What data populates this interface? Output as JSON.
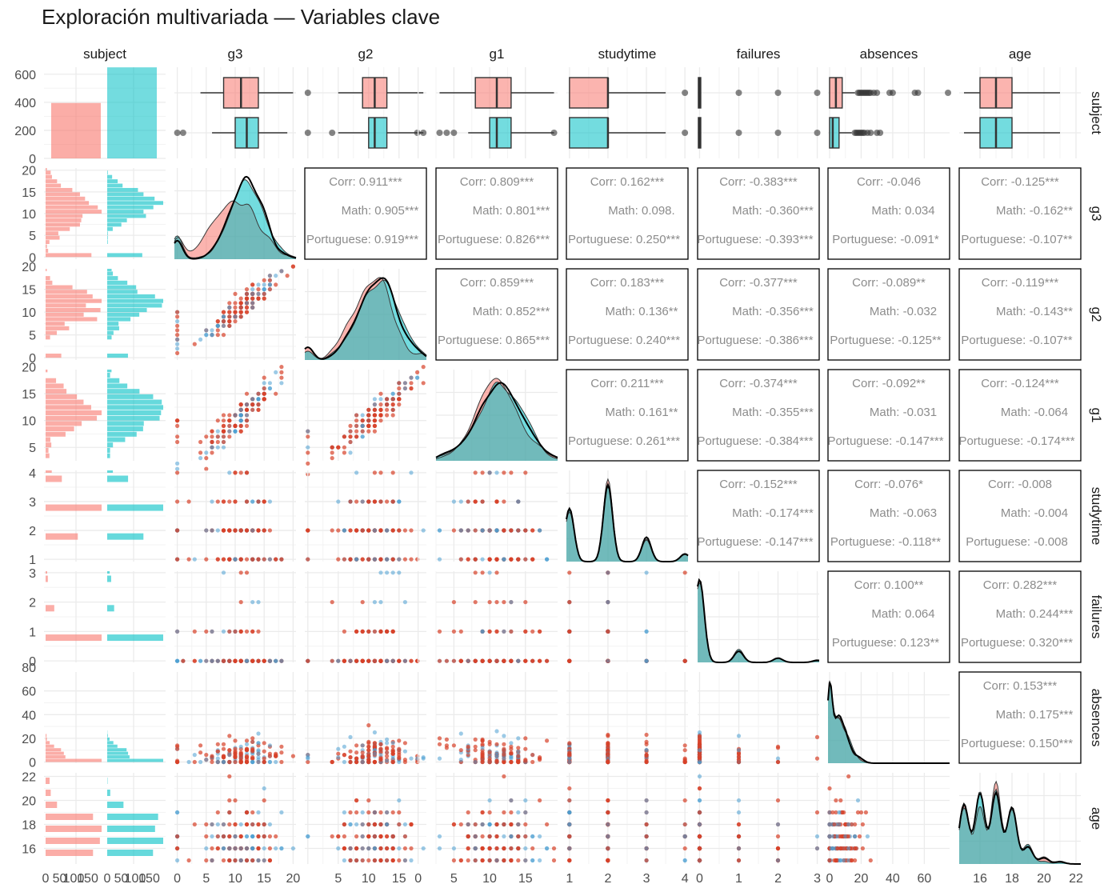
{
  "title": "Exploración multivariada — Variables clave",
  "variables": [
    "subject",
    "g3",
    "g2",
    "g1",
    "studytime",
    "failures",
    "absences",
    "age"
  ],
  "subject_levels": [
    "Math",
    "Portuguese"
  ],
  "colors": {
    "math_fill": "#F8766D",
    "portuguese_fill": "#00BFC4",
    "density_overlap": "#5FA8A8",
    "point_red": "#D7412A",
    "point_blue": "#4A9FD2",
    "grid": "#EBEBEB",
    "text": "#4D4D4D",
    "corr_text": "#8C8C8C"
  },
  "chart_data": {
    "type": "scatter",
    "title": "Exploración multivariada — Variables clave",
    "axes": {
      "subject": {
        "ticks": [
          0,
          200,
          400,
          600
        ],
        "range": [
          0,
          650
        ]
      },
      "g3": {
        "ticks": [
          0,
          5,
          10,
          15,
          20
        ],
        "range": [
          -0.5,
          20.5
        ]
      },
      "g2": {
        "ticks": [
          0,
          5,
          10,
          15
        ],
        "range": [
          -0.5,
          19.5
        ]
      },
      "g1": {
        "ticks": [
          0,
          5,
          10,
          15
        ],
        "range": [
          2.5,
          19.5
        ]
      },
      "studytime": {
        "ticks": [
          1,
          2,
          3,
          4
        ],
        "range": [
          0.92,
          4.08
        ]
      },
      "failures": {
        "ticks": [
          0,
          1,
          2,
          3
        ],
        "range": [
          -0.05,
          3.05
        ]
      },
      "absences": {
        "ticks": [
          0,
          20,
          40,
          60
        ],
        "range": [
          -1,
          76
        ]
      },
      "age": {
        "ticks": [
          16,
          18,
          20,
          22
        ],
        "range": [
          14.7,
          22.3
        ]
      }
    },
    "row_ticks": {
      "subject": [
        "0",
        "200",
        "400",
        "600"
      ],
      "g3": [
        "0",
        "5",
        "10",
        "15",
        "20"
      ],
      "g2": [
        "0",
        "5",
        "10",
        "15",
        "20"
      ],
      "g1": [
        "0",
        "5",
        "10",
        "15",
        "20"
      ],
      "studytime": [
        "1",
        "2",
        "3",
        "4"
      ],
      "failures": [
        "0",
        "1",
        "2",
        "3"
      ],
      "absences": [
        "0",
        "20",
        "40",
        "60",
        "80"
      ],
      "age": [
        "16",
        "18",
        "20",
        "22"
      ]
    },
    "bottom_ticks": {
      "subject": [
        "0",
        "50",
        "100",
        "150",
        "0",
        "50",
        "100",
        "150"
      ],
      "g3": [
        "0",
        "5",
        "10",
        "15",
        "20"
      ],
      "g2": [
        "5",
        "10",
        "15"
      ],
      "g1": [
        "0",
        "5",
        "10",
        "15"
      ],
      "studytime": [
        "1",
        "2",
        "3",
        "4"
      ],
      "failures": [
        "0",
        "1",
        "2",
        "3"
      ],
      "absences": [
        "0",
        "20",
        "40",
        "60"
      ],
      "age": [
        "16",
        "18",
        "20",
        "22"
      ]
    },
    "subject_counts": {
      "Math": 395,
      "Portuguese": 649
    },
    "boxplots": {
      "g3": {
        "Math": [
          4,
          8,
          11,
          14,
          20
        ],
        "Portuguese": [
          6,
          10,
          12,
          14,
          19
        ]
      },
      "g2": {
        "Math": [
          5,
          9,
          11,
          13,
          19
        ],
        "Portuguese": [
          5,
          10,
          11,
          13,
          19
        ]
      },
      "g1": {
        "Math": [
          3,
          8,
          11,
          13,
          19
        ],
        "Portuguese": [
          7,
          10,
          11,
          13,
          19
        ]
      },
      "studytime": {
        "Math": [
          1,
          1,
          2,
          2,
          3.5
        ],
        "Portuguese": [
          1,
          1,
          2,
          2,
          3.5
        ]
      },
      "failures": {
        "Math": [
          0,
          0,
          0,
          0,
          0
        ],
        "Portuguese": [
          0,
          0,
          0,
          0,
          0
        ]
      },
      "absences": {
        "Math": [
          0,
          0,
          4,
          8,
          16
        ],
        "Portuguese": [
          0,
          0,
          2,
          6,
          14
        ]
      },
      "age": {
        "Math": [
          15,
          16,
          17,
          18,
          21
        ],
        "Portuguese": [
          15,
          16,
          17,
          18,
          21
        ]
      }
    },
    "correlations": [
      {
        "row": "g3",
        "col": "g2",
        "corr": "Corr: 0.911***",
        "math": "Math: 0.905***",
        "port": "Portuguese: 0.919***"
      },
      {
        "row": "g3",
        "col": "g1",
        "corr": "Corr: 0.809***",
        "math": "Math: 0.801***",
        "port": "Portuguese: 0.826***"
      },
      {
        "row": "g3",
        "col": "studytime",
        "corr": "Corr: 0.162***",
        "math": "Math: 0.098.",
        "port": "Portuguese: 0.250***"
      },
      {
        "row": "g3",
        "col": "failures",
        "corr": "Corr: -0.383***",
        "math": "Math: -0.360***",
        "port": "Portuguese: -0.393***"
      },
      {
        "row": "g3",
        "col": "absences",
        "corr": "Corr: -0.046",
        "math": "Math: 0.034",
        "port": "Portuguese: -0.091*"
      },
      {
        "row": "g3",
        "col": "age",
        "corr": "Corr: -0.125***",
        "math": "Math: -0.162**",
        "port": "Portuguese: -0.107**"
      },
      {
        "row": "g2",
        "col": "g1",
        "corr": "Corr: 0.859***",
        "math": "Math: 0.852***",
        "port": "Portuguese: 0.865***"
      },
      {
        "row": "g2",
        "col": "studytime",
        "corr": "Corr: 0.183***",
        "math": "Math: 0.136**",
        "port": "Portuguese: 0.240***"
      },
      {
        "row": "g2",
        "col": "failures",
        "corr": "Corr: -0.377***",
        "math": "Math: -0.356***",
        "port": "Portuguese: -0.386***"
      },
      {
        "row": "g2",
        "col": "absences",
        "corr": "Corr: -0.089**",
        "math": "Math: -0.032",
        "port": "Portuguese: -0.125**"
      },
      {
        "row": "g2",
        "col": "age",
        "corr": "Corr: -0.119***",
        "math": "Math: -0.143**",
        "port": "Portuguese: -0.107**"
      },
      {
        "row": "g1",
        "col": "studytime",
        "corr": "Corr: 0.211***",
        "math": "Math: 0.161**",
        "port": "Portuguese: 0.261***"
      },
      {
        "row": "g1",
        "col": "failures",
        "corr": "Corr: -0.374***",
        "math": "Math: -0.355***",
        "port": "Portuguese: -0.384***"
      },
      {
        "row": "g1",
        "col": "absences",
        "corr": "Corr: -0.092**",
        "math": "Math: -0.031",
        "port": "Portuguese: -0.147***"
      },
      {
        "row": "g1",
        "col": "age",
        "corr": "Corr: -0.124***",
        "math": "Math: -0.064",
        "port": "Portuguese: -0.174***"
      },
      {
        "row": "studytime",
        "col": "failures",
        "corr": "Corr: -0.152***",
        "math": "Math: -0.174***",
        "port": "Portuguese: -0.147***"
      },
      {
        "row": "studytime",
        "col": "absences",
        "corr": "Corr: -0.076*",
        "math": "Math: -0.063",
        "port": "Portuguese: -0.118**"
      },
      {
        "row": "studytime",
        "col": "age",
        "corr": "Corr: -0.008",
        "math": "Math: -0.004",
        "port": "Portuguese: -0.008"
      },
      {
        "row": "failures",
        "col": "absences",
        "corr": "Corr: 0.100**",
        "math": "Math: 0.064",
        "port": "Portuguese: 0.123**"
      },
      {
        "row": "failures",
        "col": "age",
        "corr": "Corr: 0.282***",
        "math": "Math: 0.244***",
        "port": "Portuguese: 0.320***"
      },
      {
        "row": "absences",
        "col": "age",
        "corr": "Corr: 0.153***",
        "math": "Math: 0.175***",
        "port": "Portuguese: 0.150***"
      }
    ]
  }
}
